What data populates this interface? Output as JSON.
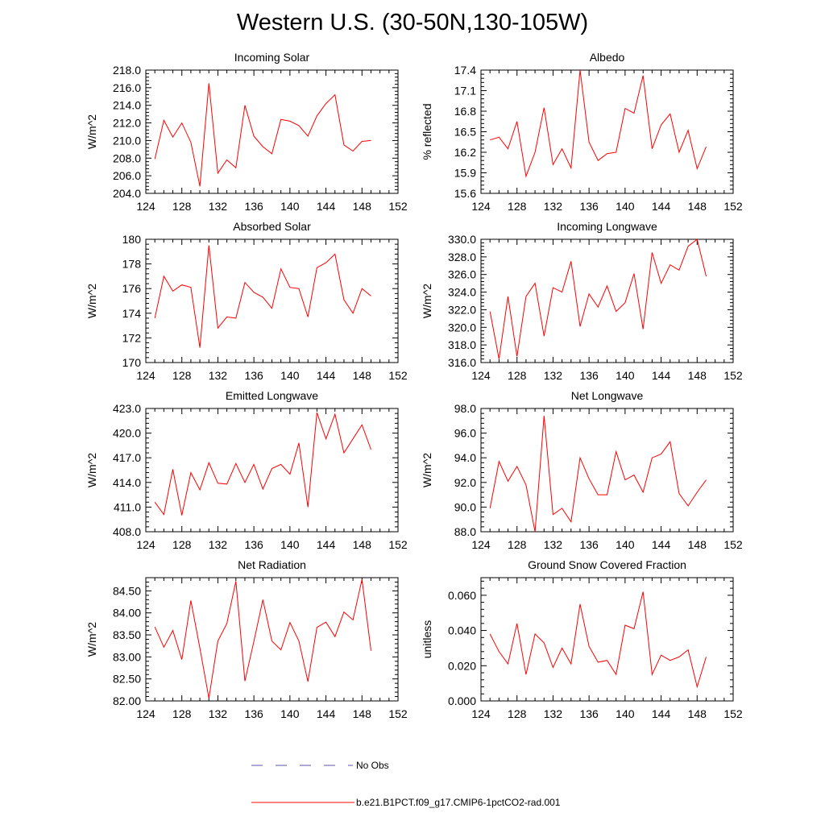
{
  "title": "Western U.S. (30-50N,130-105W)",
  "legend": {
    "obs_label": "No Obs",
    "model_label": "b.e21.B1PCT.f09_g17.CMIP6-1pctCO2-rad.001"
  },
  "colors": {
    "model": "#ff0000",
    "obs": "#5555aa",
    "axis": "#000000"
  },
  "chart_data": [
    {
      "type": "line",
      "title": "Incoming Solar",
      "ylabel": "W/m^2",
      "xlim": [
        124,
        152
      ],
      "ylim": [
        204.0,
        218.0
      ],
      "xticks": [
        124,
        128,
        132,
        136,
        140,
        144,
        148,
        152
      ],
      "xtick_labels": [
        "124",
        "128",
        "132",
        "136",
        "140",
        "144",
        "148",
        "152"
      ],
      "yticks": [
        204,
        206,
        208,
        210,
        212,
        214,
        216,
        218
      ],
      "ytick_labels": [
        "204.0",
        "206.0",
        "208.0",
        "210.0",
        "212.0",
        "214.0",
        "216.0",
        "218.0"
      ],
      "x": [
        125,
        126,
        127,
        128,
        129,
        130,
        131,
        132,
        133,
        134,
        135,
        136,
        137,
        138,
        139,
        140,
        141,
        142,
        143,
        144,
        145,
        146,
        147,
        148,
        149
      ],
      "series": [
        {
          "name": "b.e21.B1PCT.f09_g17.CMIP6-1pctCO2-rad.001",
          "values": [
            207.9,
            212.3,
            210.4,
            212.0,
            209.8,
            204.8,
            216.5,
            206.3,
            207.8,
            206.9,
            214.0,
            210.5,
            209.3,
            208.5,
            212.4,
            212.2,
            211.7,
            210.5,
            212.8,
            214.2,
            215.2,
            209.5,
            208.8,
            209.9,
            210.0
          ]
        }
      ]
    },
    {
      "type": "line",
      "title": "Albedo",
      "ylabel": "% reflected",
      "xlim": [
        124,
        152
      ],
      "ylim": [
        15.6,
        17.4
      ],
      "xticks": [
        124,
        128,
        132,
        136,
        140,
        144,
        148,
        152
      ],
      "xtick_labels": [
        "124",
        "128",
        "132",
        "136",
        "140",
        "144",
        "148",
        "152"
      ],
      "yticks": [
        15.6,
        15.9,
        16.2,
        16.5,
        16.8,
        17.1,
        17.4
      ],
      "ytick_labels": [
        "15.6",
        "15.9",
        "16.2",
        "16.5",
        "16.8",
        "17.1",
        "17.4"
      ],
      "x": [
        125,
        126,
        127,
        128,
        129,
        130,
        131,
        132,
        133,
        134,
        135,
        136,
        137,
        138,
        139,
        140,
        141,
        142,
        143,
        144,
        145,
        146,
        147,
        148,
        149
      ],
      "series": [
        {
          "name": "b.e21.B1PCT.f09_g17.CMIP6-1pctCO2-rad.001",
          "values": [
            16.38,
            16.42,
            16.25,
            16.65,
            15.85,
            16.2,
            16.85,
            16.02,
            16.25,
            15.97,
            17.4,
            16.35,
            16.08,
            16.18,
            16.2,
            16.84,
            16.77,
            17.32,
            16.25,
            16.6,
            16.76,
            16.2,
            16.52,
            15.96,
            16.28
          ]
        }
      ]
    },
    {
      "type": "line",
      "title": "Absorbed Solar",
      "ylabel": "W/m^2",
      "xlim": [
        124,
        152
      ],
      "ylim": [
        170,
        180
      ],
      "xticks": [
        124,
        128,
        132,
        136,
        140,
        144,
        148,
        152
      ],
      "xtick_labels": [
        "124",
        "128",
        "132",
        "136",
        "140",
        "144",
        "148",
        "152"
      ],
      "yticks": [
        170,
        172,
        174,
        176,
        178,
        180
      ],
      "ytick_labels": [
        "170",
        "172",
        "174",
        "176",
        "178",
        "180"
      ],
      "x": [
        125,
        126,
        127,
        128,
        129,
        130,
        131,
        132,
        133,
        134,
        135,
        136,
        137,
        138,
        139,
        140,
        141,
        142,
        143,
        144,
        145,
        146,
        147,
        148,
        149
      ],
      "series": [
        {
          "name": "b.e21.B1PCT.f09_g17.CMIP6-1pctCO2-rad.001",
          "values": [
            173.6,
            177.0,
            175.8,
            176.3,
            176.1,
            171.2,
            179.5,
            172.8,
            173.7,
            173.6,
            176.5,
            175.7,
            175.3,
            174.4,
            177.6,
            176.1,
            176.0,
            173.7,
            177.7,
            178.1,
            178.8,
            175.1,
            174.0,
            176.0,
            175.4
          ]
        }
      ]
    },
    {
      "type": "line",
      "title": "Incoming Longwave",
      "ylabel": "W/m^2",
      "xlim": [
        124,
        152
      ],
      "ylim": [
        316.0,
        330.0
      ],
      "xticks": [
        124,
        128,
        132,
        136,
        140,
        144,
        148,
        152
      ],
      "xtick_labels": [
        "124",
        "128",
        "132",
        "136",
        "140",
        "144",
        "148",
        "152"
      ],
      "yticks": [
        316,
        318,
        320,
        322,
        324,
        326,
        328,
        330
      ],
      "ytick_labels": [
        "316.0",
        "318.0",
        "320.0",
        "322.0",
        "324.0",
        "326.0",
        "328.0",
        "330.0"
      ],
      "x": [
        125,
        126,
        127,
        128,
        129,
        130,
        131,
        132,
        133,
        134,
        135,
        136,
        137,
        138,
        139,
        140,
        141,
        142,
        143,
        144,
        145,
        146,
        147,
        148,
        149
      ],
      "series": [
        {
          "name": "b.e21.B1PCT.f09_g17.CMIP6-1pctCO2-rad.001",
          "values": [
            321.8,
            316.4,
            323.5,
            316.7,
            323.5,
            325.0,
            319.0,
            324.5,
            324.0,
            327.5,
            320.1,
            323.8,
            322.3,
            324.7,
            321.8,
            322.8,
            326.1,
            319.8,
            328.5,
            325.0,
            327.1,
            326.5,
            329.2,
            330.0,
            325.8
          ]
        }
      ]
    },
    {
      "type": "line",
      "title": "Emitted Longwave",
      "ylabel": "W/m^2",
      "xlim": [
        124,
        152
      ],
      "ylim": [
        408.0,
        423.0
      ],
      "xticks": [
        124,
        128,
        132,
        136,
        140,
        144,
        148,
        152
      ],
      "xtick_labels": [
        "124",
        "128",
        "132",
        "136",
        "140",
        "144",
        "148",
        "152"
      ],
      "yticks": [
        408,
        411,
        414,
        417,
        420,
        423
      ],
      "ytick_labels": [
        "408.0",
        "411.0",
        "414.0",
        "417.0",
        "420.0",
        "423.0"
      ],
      "x": [
        125,
        126,
        127,
        128,
        129,
        130,
        131,
        132,
        133,
        134,
        135,
        136,
        137,
        138,
        139,
        140,
        141,
        142,
        143,
        144,
        145,
        146,
        147,
        148,
        149
      ],
      "series": [
        {
          "name": "b.e21.B1PCT.f09_g17.CMIP6-1pctCO2-rad.001",
          "values": [
            411.6,
            410.1,
            415.6,
            410.0,
            415.2,
            413.1,
            416.4,
            413.9,
            413.8,
            416.3,
            414.0,
            416.2,
            413.2,
            415.7,
            416.2,
            415.0,
            418.8,
            411.0,
            422.5,
            419.3,
            422.3,
            417.6,
            419.3,
            421.0,
            418.0
          ]
        }
      ]
    },
    {
      "type": "line",
      "title": "Net Longwave",
      "ylabel": "W/m^2",
      "xlim": [
        124,
        152
      ],
      "ylim": [
        88.0,
        98.0
      ],
      "xticks": [
        124,
        128,
        132,
        136,
        140,
        144,
        148,
        152
      ],
      "xtick_labels": [
        "124",
        "128",
        "132",
        "136",
        "140",
        "144",
        "148",
        "152"
      ],
      "yticks": [
        88,
        90,
        92,
        94,
        96,
        98
      ],
      "ytick_labels": [
        "88.0",
        "90.0",
        "92.0",
        "94.0",
        "96.0",
        "98.0"
      ],
      "x": [
        125,
        126,
        127,
        128,
        129,
        130,
        131,
        132,
        133,
        134,
        135,
        136,
        137,
        138,
        139,
        140,
        141,
        142,
        143,
        144,
        145,
        146,
        147,
        148,
        149
      ],
      "series": [
        {
          "name": "b.e21.B1PCT.f09_g17.CMIP6-1pctCO2-rad.001",
          "values": [
            89.9,
            93.7,
            92.1,
            93.3,
            91.8,
            88.0,
            97.4,
            89.4,
            89.9,
            88.8,
            94.0,
            92.3,
            91.0,
            91.0,
            94.5,
            92.2,
            92.6,
            91.2,
            94.0,
            94.3,
            95.3,
            91.1,
            90.1,
            91.2,
            92.2
          ]
        }
      ]
    },
    {
      "type": "line",
      "title": "Net Radiation",
      "ylabel": "W/m^2",
      "xlim": [
        124,
        152
      ],
      "ylim": [
        82.0,
        84.8
      ],
      "xticks": [
        124,
        128,
        132,
        136,
        140,
        144,
        148,
        152
      ],
      "xtick_labels": [
        "124",
        "128",
        "132",
        "136",
        "140",
        "144",
        "148",
        "152"
      ],
      "yticks": [
        82.0,
        82.5,
        83.0,
        83.5,
        84.0,
        84.5
      ],
      "ytick_labels": [
        "82.00",
        "82.50",
        "83.00",
        "83.50",
        "84.00",
        "84.50"
      ],
      "x": [
        125,
        126,
        127,
        128,
        129,
        130,
        131,
        132,
        133,
        134,
        135,
        136,
        137,
        138,
        139,
        140,
        141,
        142,
        143,
        144,
        145,
        146,
        147,
        148,
        149
      ],
      "series": [
        {
          "name": "b.e21.B1PCT.f09_g17.CMIP6-1pctCO2-rad.001",
          "values": [
            83.68,
            83.22,
            83.6,
            82.94,
            84.28,
            83.2,
            82.06,
            83.36,
            83.76,
            84.72,
            82.45,
            83.35,
            84.3,
            83.36,
            83.16,
            83.78,
            83.36,
            82.44,
            83.67,
            83.79,
            83.46,
            84.02,
            83.84,
            84.76,
            83.14
          ]
        }
      ]
    },
    {
      "type": "line",
      "title": "Ground Snow Covered Fraction",
      "ylabel": "unitless",
      "xlim": [
        124,
        152
      ],
      "ylim": [
        0.0,
        0.07
      ],
      "xticks": [
        124,
        128,
        132,
        136,
        140,
        144,
        148,
        152
      ],
      "xtick_labels": [
        "124",
        "128",
        "132",
        "136",
        "140",
        "144",
        "148",
        "152"
      ],
      "yticks": [
        0.0,
        0.02,
        0.04,
        0.06
      ],
      "ytick_labels": [
        "0.000",
        "0.020",
        "0.040",
        "0.060"
      ],
      "x": [
        125,
        126,
        127,
        128,
        129,
        130,
        131,
        132,
        133,
        134,
        135,
        136,
        137,
        138,
        139,
        140,
        141,
        142,
        143,
        144,
        145,
        146,
        147,
        148,
        149
      ],
      "series": [
        {
          "name": "b.e21.B1PCT.f09_g17.CMIP6-1pctCO2-rad.001",
          "values": [
            0.038,
            0.028,
            0.021,
            0.044,
            0.015,
            0.038,
            0.033,
            0.019,
            0.03,
            0.021,
            0.055,
            0.031,
            0.022,
            0.023,
            0.015,
            0.043,
            0.041,
            0.062,
            0.015,
            0.026,
            0.023,
            0.025,
            0.029,
            0.008,
            0.025
          ]
        }
      ]
    }
  ]
}
